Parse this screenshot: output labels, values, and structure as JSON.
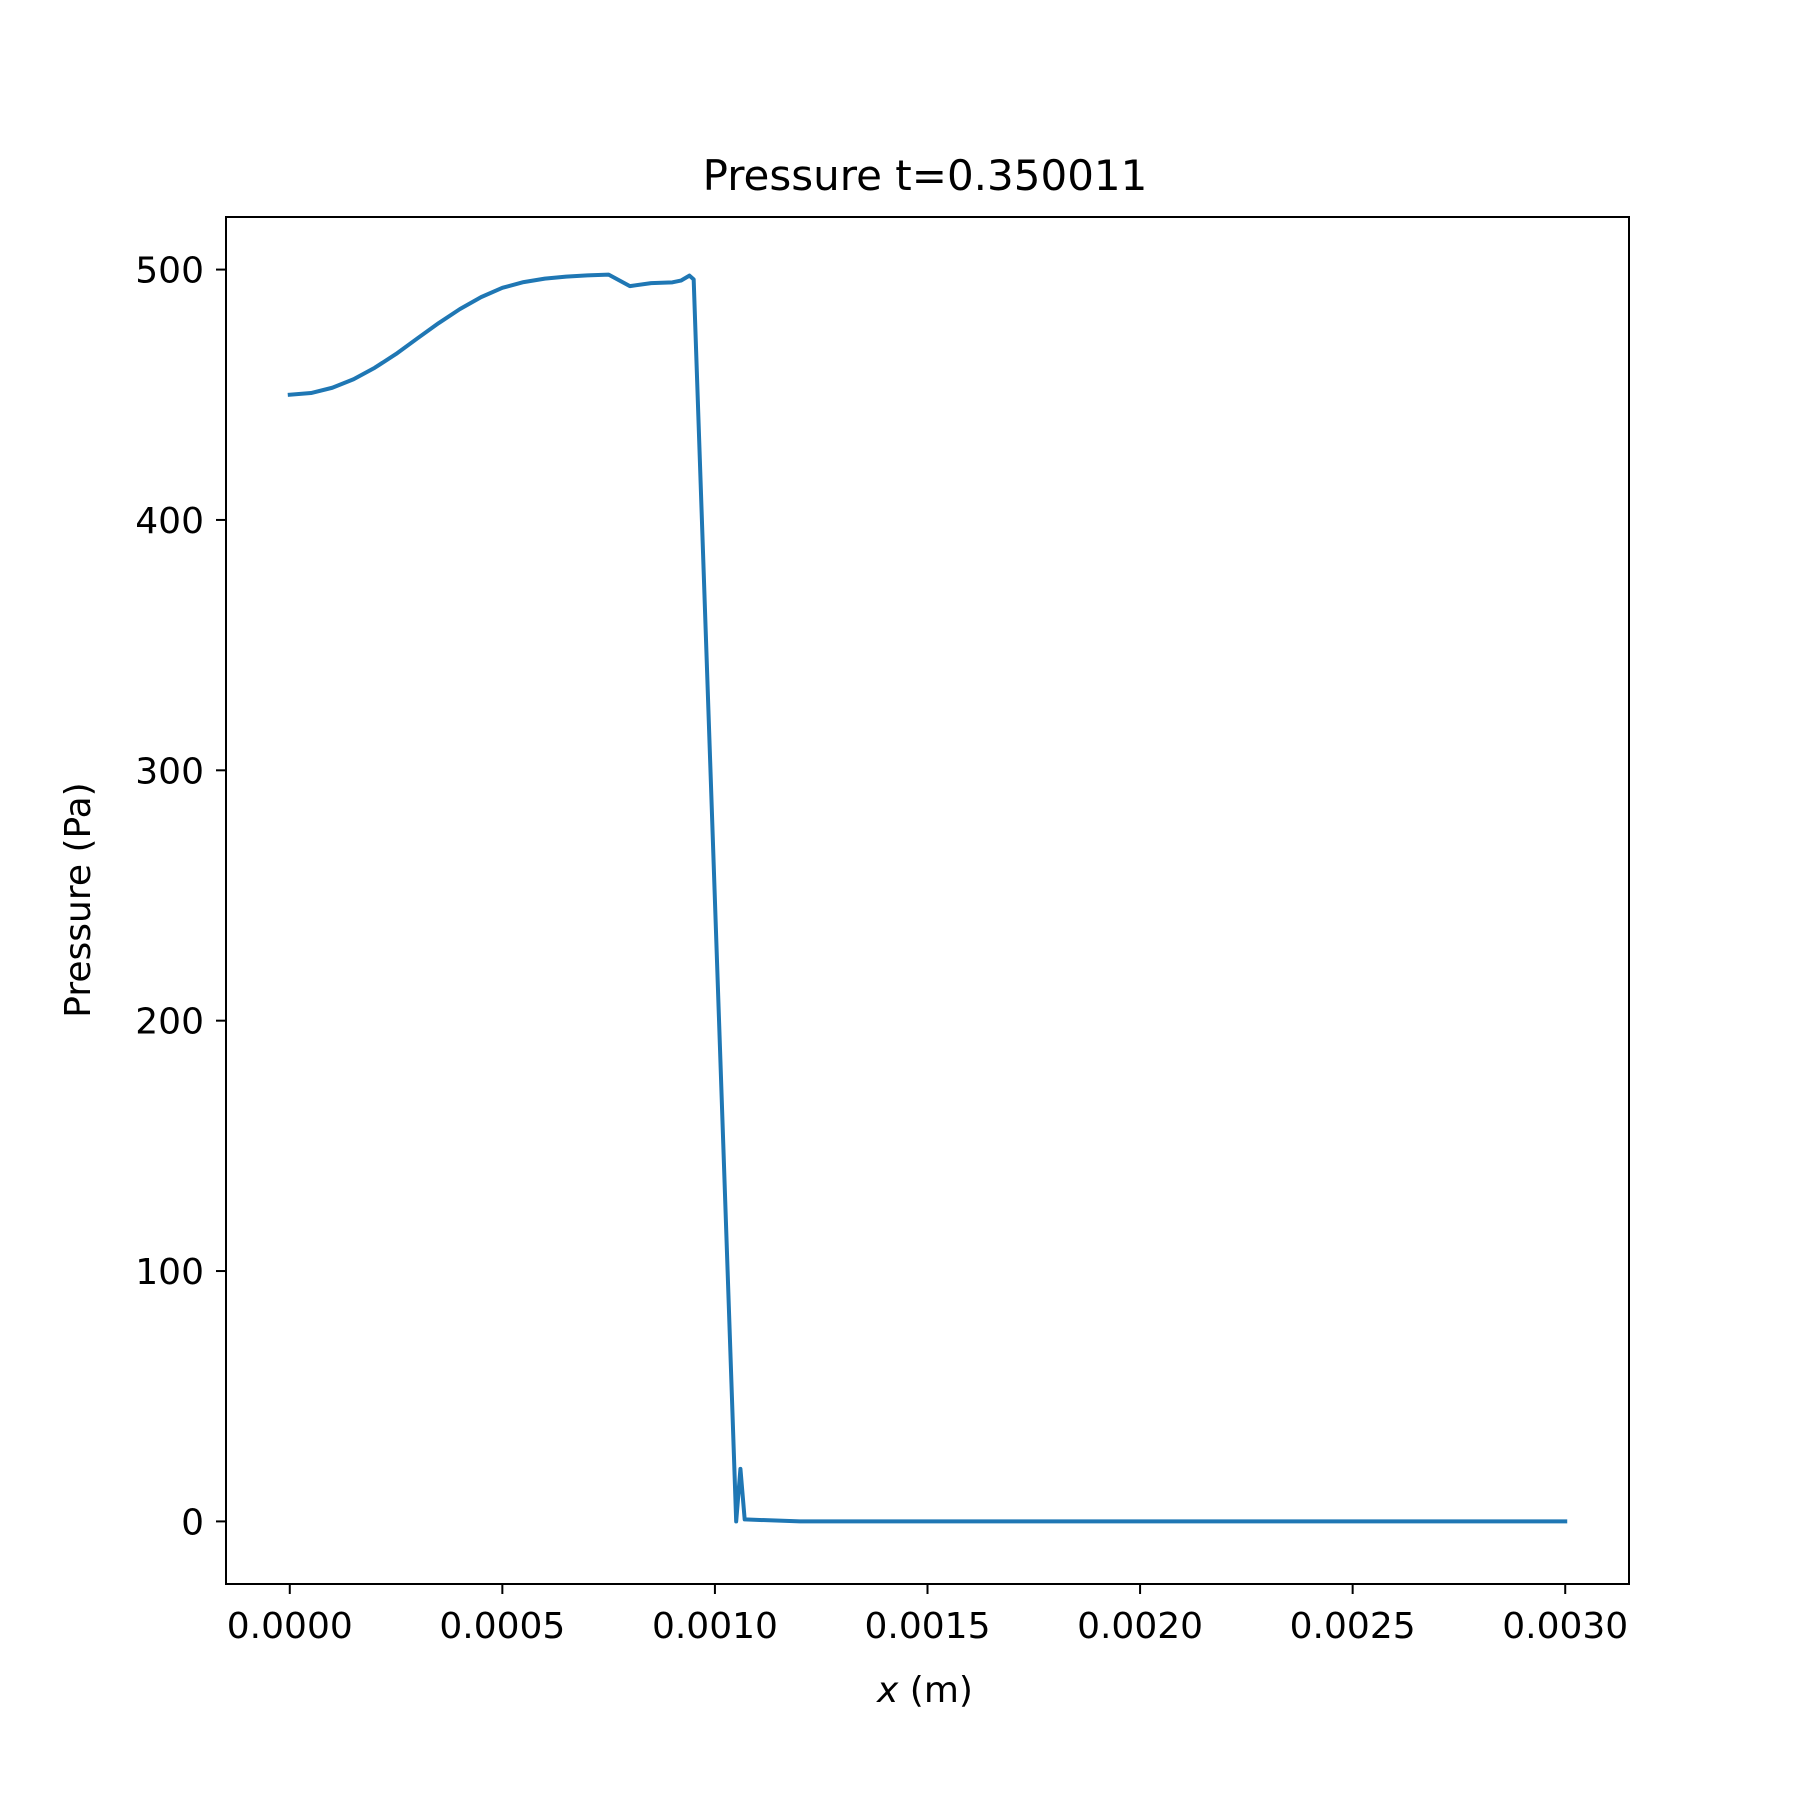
{
  "chart_data": {
    "type": "line",
    "title": "Pressure t=0.350011",
    "xlabel_var": "x",
    "xlabel_unit": " (m)",
    "ylabel": "Pressure (Pa)",
    "xlim": [
      -0.00015,
      0.00315
    ],
    "ylim": [
      -25,
      521
    ],
    "x_ticks": [
      0.0,
      0.0005,
      0.001,
      0.0015,
      0.002,
      0.0025,
      0.003
    ],
    "x_tick_labels": [
      "0.0000",
      "0.0005",
      "0.0010",
      "0.0015",
      "0.0020",
      "0.0025",
      "0.0030"
    ],
    "y_ticks": [
      0,
      100,
      200,
      300,
      400,
      500
    ],
    "y_tick_labels": [
      "0",
      "100",
      "200",
      "300",
      "400",
      "500"
    ],
    "grid": false,
    "series": [
      {
        "color": "#1f77b4",
        "x": [
          0.0,
          5e-05,
          0.0001,
          0.00015,
          0.0002,
          0.00025,
          0.0003,
          0.00035,
          0.0004,
          0.00045,
          0.0005,
          0.00055,
          0.0006,
          0.00065,
          0.0007,
          0.00075,
          0.0008,
          0.00085,
          0.0009,
          0.00092,
          0.00094,
          0.00095,
          0.00105,
          0.00106,
          0.00107,
          0.0012,
          0.0015,
          0.002,
          0.0025,
          0.003
        ],
        "y": [
          450,
          450.7,
          452.8,
          456.2,
          460.8,
          466.3,
          472.5,
          478.6,
          484.2,
          489.0,
          492.7,
          495.0,
          496.4,
          497.2,
          497.7,
          498.0,
          493.4,
          494.6,
          494.9,
          495.6,
          497.6,
          496.1,
          0,
          21,
          0.8,
          0,
          0,
          0,
          0,
          0
        ]
      }
    ]
  }
}
